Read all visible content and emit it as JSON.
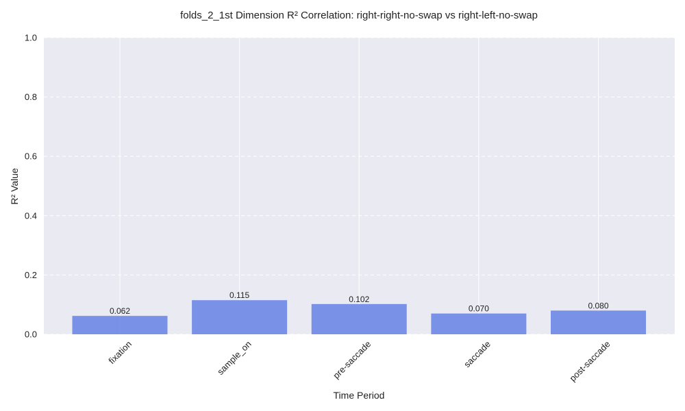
{
  "chart_data": {
    "type": "bar",
    "title": "folds_2_1st Dimension R² Correlation: right-right-no-swap vs right-left-no-swap",
    "xlabel": "Time Period",
    "ylabel": "R² Value",
    "categories": [
      "fixation",
      "sample_on",
      "pre-saccade",
      "saccade",
      "post-saccade"
    ],
    "values": [
      0.062,
      0.115,
      0.102,
      0.07,
      0.08
    ],
    "data_labels": [
      "0.062",
      "0.115",
      "0.102",
      "0.070",
      "0.080"
    ],
    "ylim": [
      0,
      1.0
    ],
    "yticks": [
      0.0,
      0.2,
      0.4,
      0.6,
      0.8,
      1.0
    ],
    "ytick_labels": [
      "0.0",
      "0.2",
      "0.4",
      "0.6",
      "0.8",
      "1.0"
    ],
    "grid": true,
    "bar_color": "#6f8ae6",
    "background_color": "#eaeaf2"
  }
}
